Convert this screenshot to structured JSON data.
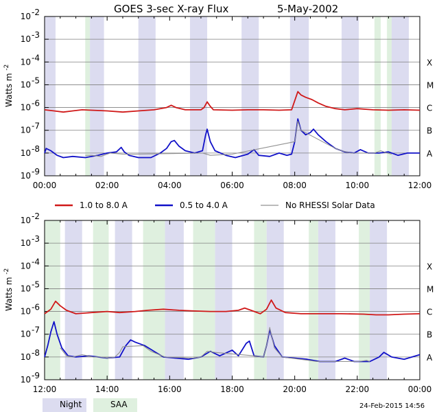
{
  "title_left": "GOES 3-sec X-ray Flux",
  "title_right": "5-May-2002",
  "ylabel": "Watts m",
  "ylabel_exp": "-2",
  "legend": {
    "red": "1.0 to 8.0 A",
    "blue": "0.5 to 4.0 A",
    "gray": "No RHESSI Solar Data"
  },
  "bottom_legend": {
    "night": "Night",
    "saa": "SAA"
  },
  "footer_timestamp": "24-Feb-2015 14:56",
  "colors": {
    "red": "#d01818",
    "blue": "#1010c8",
    "gray": "#909090",
    "night": "#dcdcf0",
    "saa": "#dff0df",
    "gridline": "#7f7f7f"
  },
  "chart_data": [
    {
      "type": "line",
      "scale": "log",
      "ylim": [
        1e-09,
        0.01
      ],
      "xlim": [
        0,
        12
      ],
      "x_ticks": [
        "00:00",
        "02:00",
        "04:00",
        "06:00",
        "08:00",
        "10:00",
        "12:00"
      ],
      "y_tick_exponents": [
        -9,
        -8,
        -7,
        -6,
        -5,
        -4,
        -3,
        -2
      ],
      "flare_classes": [
        {
          "label": "A",
          "exp": -8
        },
        {
          "label": "C",
          "exp": -6
        },
        {
          "label": "B",
          "exp": -7
        },
        {
          "label": "M",
          "exp": -5
        },
        {
          "label": "X",
          "exp": -4
        }
      ],
      "night": [
        [
          0.0,
          0.35
        ],
        [
          1.45,
          1.9
        ],
        [
          3.0,
          3.55
        ],
        [
          4.65,
          5.2
        ],
        [
          6.3,
          6.85
        ],
        [
          7.85,
          8.45
        ],
        [
          9.5,
          10.05
        ],
        [
          11.1,
          11.65
        ]
      ],
      "saa": [
        [
          1.3,
          1.45
        ],
        [
          10.55,
          10.75
        ],
        [
          10.95,
          11.1
        ]
      ],
      "series": [
        {
          "key": "red",
          "exp": [
            [
              0,
              -6.1
            ],
            [
              0.3,
              -6.15
            ],
            [
              0.6,
              -6.2
            ],
            [
              0.9,
              -6.15
            ],
            [
              1.2,
              -6.1
            ],
            [
              1.5,
              -6.12
            ],
            [
              2.0,
              -6.15
            ],
            [
              2.5,
              -6.2
            ],
            [
              3.0,
              -6.15
            ],
            [
              3.5,
              -6.1
            ],
            [
              3.9,
              -6.0
            ],
            [
              4.05,
              -5.9
            ],
            [
              4.2,
              -6.0
            ],
            [
              4.5,
              -6.1
            ],
            [
              5.0,
              -6.1
            ],
            [
              5.1,
              -6.0
            ],
            [
              5.2,
              -5.75
            ],
            [
              5.3,
              -5.95
            ],
            [
              5.4,
              -6.1
            ],
            [
              6.0,
              -6.12
            ],
            [
              6.5,
              -6.1
            ],
            [
              7.0,
              -6.1
            ],
            [
              7.5,
              -6.12
            ],
            [
              7.9,
              -6.1
            ],
            [
              8.0,
              -5.7
            ],
            [
              8.1,
              -5.3
            ],
            [
              8.2,
              -5.45
            ],
            [
              8.35,
              -5.55
            ],
            [
              8.55,
              -5.65
            ],
            [
              8.75,
              -5.8
            ],
            [
              9.0,
              -5.95
            ],
            [
              9.3,
              -6.05
            ],
            [
              9.6,
              -6.1
            ],
            [
              10.0,
              -6.05
            ],
            [
              10.5,
              -6.1
            ],
            [
              11.0,
              -6.12
            ],
            [
              11.5,
              -6.1
            ],
            [
              12.0,
              -6.12
            ]
          ]
        },
        {
          "key": "blue",
          "exp": [
            [
              0,
              -8.0
            ],
            [
              0.05,
              -7.8
            ],
            [
              0.2,
              -7.9
            ],
            [
              0.4,
              -8.1
            ],
            [
              0.6,
              -8.2
            ],
            [
              0.9,
              -8.15
            ],
            [
              1.3,
              -8.2
            ],
            [
              1.7,
              -8.1
            ],
            [
              2.0,
              -8.0
            ],
            [
              2.3,
              -7.95
            ],
            [
              2.45,
              -7.75
            ],
            [
              2.55,
              -7.95
            ],
            [
              2.7,
              -8.1
            ],
            [
              3.0,
              -8.2
            ],
            [
              3.4,
              -8.2
            ],
            [
              3.7,
              -8.0
            ],
            [
              3.9,
              -7.8
            ],
            [
              4.05,
              -7.5
            ],
            [
              4.15,
              -7.45
            ],
            [
              4.3,
              -7.7
            ],
            [
              4.5,
              -7.9
            ],
            [
              4.8,
              -8.0
            ],
            [
              5.05,
              -7.9
            ],
            [
              5.15,
              -7.2
            ],
            [
              5.2,
              -6.95
            ],
            [
              5.3,
              -7.5
            ],
            [
              5.45,
              -7.9
            ],
            [
              5.8,
              -8.1
            ],
            [
              6.1,
              -8.2
            ],
            [
              6.5,
              -8.05
            ],
            [
              6.7,
              -7.85
            ],
            [
              6.85,
              -8.1
            ],
            [
              7.2,
              -8.15
            ],
            [
              7.5,
              -8.0
            ],
            [
              7.75,
              -8.1
            ],
            [
              7.9,
              -8.05
            ],
            [
              8.0,
              -7.5
            ],
            [
              8.1,
              -6.5
            ],
            [
              8.2,
              -7.0
            ],
            [
              8.35,
              -7.2
            ],
            [
              8.5,
              -7.1
            ],
            [
              8.6,
              -6.95
            ],
            [
              8.75,
              -7.2
            ],
            [
              9.0,
              -7.5
            ],
            [
              9.3,
              -7.8
            ],
            [
              9.6,
              -7.95
            ],
            [
              9.9,
              -8.0
            ],
            [
              10.1,
              -7.85
            ],
            [
              10.35,
              -8.0
            ],
            [
              10.7,
              -8.0
            ],
            [
              11.0,
              -7.95
            ],
            [
              11.3,
              -8.1
            ],
            [
              11.6,
              -8.0
            ],
            [
              12.0,
              -8.0
            ]
          ]
        },
        {
          "key": "gray",
          "exp": [
            [
              1.3,
              -8.1
            ],
            [
              1.5,
              -8.1
            ],
            [
              1.8,
              -8.15
            ],
            [
              2.1,
              -8.0
            ],
            [
              2.5,
              -8.05
            ],
            [
              2.9,
              -8.05
            ],
            [
              5.05,
              -8.0
            ],
            [
              5.3,
              -8.1
            ],
            [
              6.0,
              -8.05
            ],
            [
              8.0,
              -7.5
            ],
            [
              8.1,
              -6.6
            ],
            [
              8.2,
              -7.0
            ],
            [
              9.3,
              -7.8
            ],
            [
              9.5,
              -7.9
            ],
            [
              9.8,
              -8.0
            ],
            [
              10.55,
              -8.0
            ],
            [
              10.75,
              -7.9
            ],
            [
              10.95,
              -8.0
            ],
            [
              11.1,
              -8.05
            ]
          ],
          "segments": [
            [
              1.3,
              2.9
            ],
            [
              5.3,
              6.0
            ],
            [
              10.55,
              11.1
            ]
          ]
        }
      ]
    },
    {
      "type": "line",
      "scale": "log",
      "ylim": [
        1e-09,
        0.01
      ],
      "xlim": [
        12,
        24
      ],
      "x_ticks": [
        "12:00",
        "14:00",
        "16:00",
        "18:00",
        "20:00",
        "22:00",
        "00:00"
      ],
      "y_tick_exponents": [
        -9,
        -8,
        -7,
        -6,
        -5,
        -4,
        -3,
        -2
      ],
      "flare_classes": [
        {
          "label": "A",
          "exp": -8
        },
        {
          "label": "C",
          "exp": -6
        },
        {
          "label": "B",
          "exp": -7
        },
        {
          "label": "M",
          "exp": -5
        },
        {
          "label": "X",
          "exp": -4
        }
      ],
      "night": [
        [
          12.0,
          12.1
        ],
        [
          12.65,
          13.2
        ],
        [
          14.25,
          14.8
        ],
        [
          15.85,
          16.45
        ],
        [
          17.45,
          18.0
        ],
        [
          19.1,
          19.65
        ],
        [
          20.75,
          21.3
        ],
        [
          22.4,
          22.95
        ]
      ],
      "saa": [
        [
          12.0,
          12.5
        ],
        [
          13.55,
          14.05
        ],
        [
          15.15,
          15.85
        ],
        [
          16.75,
          17.45
        ],
        [
          18.7,
          19.1
        ],
        [
          20.45,
          20.75
        ],
        [
          22.05,
          22.4
        ]
      ],
      "series": [
        {
          "key": "red",
          "exp": [
            [
              12.0,
              -6.1
            ],
            [
              12.2,
              -5.9
            ],
            [
              12.35,
              -5.55
            ],
            [
              12.5,
              -5.75
            ],
            [
              12.7,
              -5.95
            ],
            [
              13.0,
              -6.1
            ],
            [
              13.5,
              -6.05
            ],
            [
              14.0,
              -6.0
            ],
            [
              14.4,
              -6.05
            ],
            [
              14.9,
              -6.0
            ],
            [
              15.3,
              -5.95
            ],
            [
              15.8,
              -5.9
            ],
            [
              16.3,
              -5.95
            ],
            [
              16.8,
              -5.98
            ],
            [
              17.3,
              -6.0
            ],
            [
              17.8,
              -6.0
            ],
            [
              18.2,
              -5.95
            ],
            [
              18.4,
              -5.85
            ],
            [
              18.6,
              -5.95
            ],
            [
              18.9,
              -6.1
            ],
            [
              19.1,
              -5.9
            ],
            [
              19.25,
              -5.5
            ],
            [
              19.4,
              -5.85
            ],
            [
              19.7,
              -6.05
            ],
            [
              20.2,
              -6.1
            ],
            [
              20.8,
              -6.1
            ],
            [
              21.5,
              -6.1
            ],
            [
              22.2,
              -6.12
            ],
            [
              22.6,
              -6.15
            ],
            [
              23.0,
              -6.15
            ],
            [
              23.5,
              -6.12
            ],
            [
              24.0,
              -6.1
            ]
          ]
        },
        {
          "key": "blue",
          "exp": [
            [
              12.0,
              -8.0
            ],
            [
              12.1,
              -7.5
            ],
            [
              12.2,
              -6.9
            ],
            [
              12.3,
              -6.45
            ],
            [
              12.4,
              -7.0
            ],
            [
              12.55,
              -7.6
            ],
            [
              12.75,
              -7.95
            ],
            [
              13.0,
              -8.0
            ],
            [
              13.4,
              -7.95
            ],
            [
              14.0,
              -8.05
            ],
            [
              14.4,
              -8.0
            ],
            [
              14.6,
              -7.5
            ],
            [
              14.75,
              -7.25
            ],
            [
              14.9,
              -7.35
            ],
            [
              15.2,
              -7.5
            ],
            [
              15.5,
              -7.75
            ],
            [
              15.8,
              -8.0
            ],
            [
              16.2,
              -8.05
            ],
            [
              16.6,
              -8.1
            ],
            [
              17.0,
              -8.0
            ],
            [
              17.3,
              -7.75
            ],
            [
              17.6,
              -7.95
            ],
            [
              18.0,
              -7.7
            ],
            [
              18.2,
              -7.95
            ],
            [
              18.45,
              -7.4
            ],
            [
              18.55,
              -7.3
            ],
            [
              18.7,
              -7.95
            ],
            [
              19.0,
              -8.0
            ],
            [
              19.1,
              -7.5
            ],
            [
              19.2,
              -6.8
            ],
            [
              19.35,
              -7.5
            ],
            [
              19.6,
              -8.0
            ],
            [
              20.0,
              -8.05
            ],
            [
              20.4,
              -8.1
            ],
            [
              20.8,
              -8.2
            ],
            [
              21.3,
              -8.2
            ],
            [
              21.6,
              -8.05
            ],
            [
              21.9,
              -8.2
            ],
            [
              22.4,
              -8.2
            ],
            [
              22.7,
              -8.0
            ],
            [
              22.85,
              -7.8
            ],
            [
              23.1,
              -8.0
            ],
            [
              23.5,
              -8.1
            ],
            [
              24.0,
              -7.9
            ]
          ]
        },
        {
          "key": "gray",
          "exp": [
            [
              12.5,
              -7.6
            ],
            [
              12.7,
              -7.95
            ],
            [
              12.9,
              -8.0
            ],
            [
              13.2,
              -7.9
            ],
            [
              13.4,
              -7.95
            ],
            [
              13.55,
              -8.0
            ],
            [
              13.8,
              -8.0
            ],
            [
              14.05,
              -8.05
            ],
            [
              14.25,
              -8.0
            ],
            [
              14.4,
              -7.8
            ],
            [
              14.5,
              -7.55
            ],
            [
              15.15,
              -7.5
            ],
            [
              15.4,
              -7.75
            ],
            [
              15.85,
              -8.0
            ],
            [
              16.75,
              -8.05
            ],
            [
              17.0,
              -8.0
            ],
            [
              17.2,
              -7.75
            ],
            [
              17.45,
              -7.8
            ],
            [
              18.7,
              -7.95
            ],
            [
              19.0,
              -8.0
            ],
            [
              19.1,
              -7.5
            ],
            [
              19.2,
              -6.7
            ],
            [
              19.35,
              -7.6
            ],
            [
              19.6,
              -8.0
            ],
            [
              20.45,
              -8.15
            ],
            [
              20.7,
              -8.2
            ],
            [
              22.05,
              -8.2
            ],
            [
              22.3,
              -8.15
            ],
            [
              22.4,
              -8.2
            ]
          ],
          "segments": [
            [
              12.5,
              14.5
            ],
            [
              15.15,
              15.85
            ],
            [
              16.75,
              17.45
            ],
            [
              18.7,
              19.65
            ],
            [
              20.45,
              20.75
            ],
            [
              22.05,
              22.4
            ]
          ],
          "red_gray_segments": [
            [
              13.0,
              13.6
            ],
            [
              15.9,
              16.4
            ],
            [
              17.5,
              18.0
            ]
          ]
        }
      ]
    }
  ]
}
